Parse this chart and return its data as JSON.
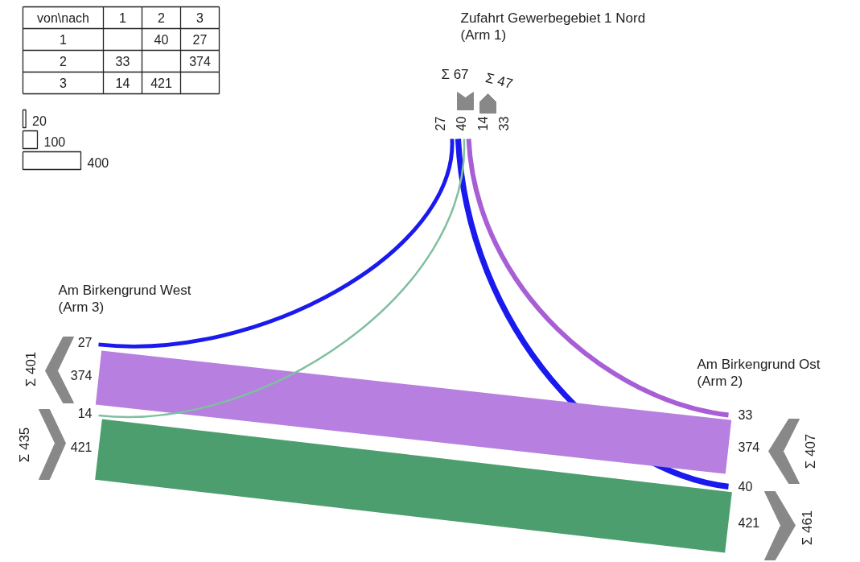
{
  "chart_data": {
    "type": "other",
    "legend_title": "von\\nach",
    "categories": [
      "1",
      "2",
      "3"
    ],
    "y_categories": [
      "1",
      "2",
      "3"
    ],
    "series": [
      {
        "name": "Zufahrt Gewerbegebiet 1 Nord\n(Arm 1)",
        "values": [
          null,
          40,
          27
        ],
        "colors": [
          null,
          "#1a1aee",
          "#1a1aee"
        ]
      },
      {
        "name": "Am Birkengrund Ost\n(Arm 2)",
        "values": [
          33,
          null,
          374
        ],
        "colors": [
          "#a85fd6",
          null,
          "#b77fdf"
        ]
      },
      {
        "name": "Am Birkengrund West\n(Arm 3)",
        "values": [
          14,
          421,
          null
        ],
        "colors": [
          "#80bfa0",
          "#4d9e6f",
          null
        ]
      }
    ],
    "data_labels": true,
    "annotations": [
      "20",
      "100",
      "400",
      "40",
      "40",
      "27",
      "27",
      "33",
      "33",
      "374",
      "374",
      "14",
      "14",
      "421",
      "421"
    ],
    "totals": [
      "Σ 67",
      "Σ 47",
      "Σ 407",
      "Σ 461",
      "Σ 435",
      "Σ 401"
    ]
  }
}
